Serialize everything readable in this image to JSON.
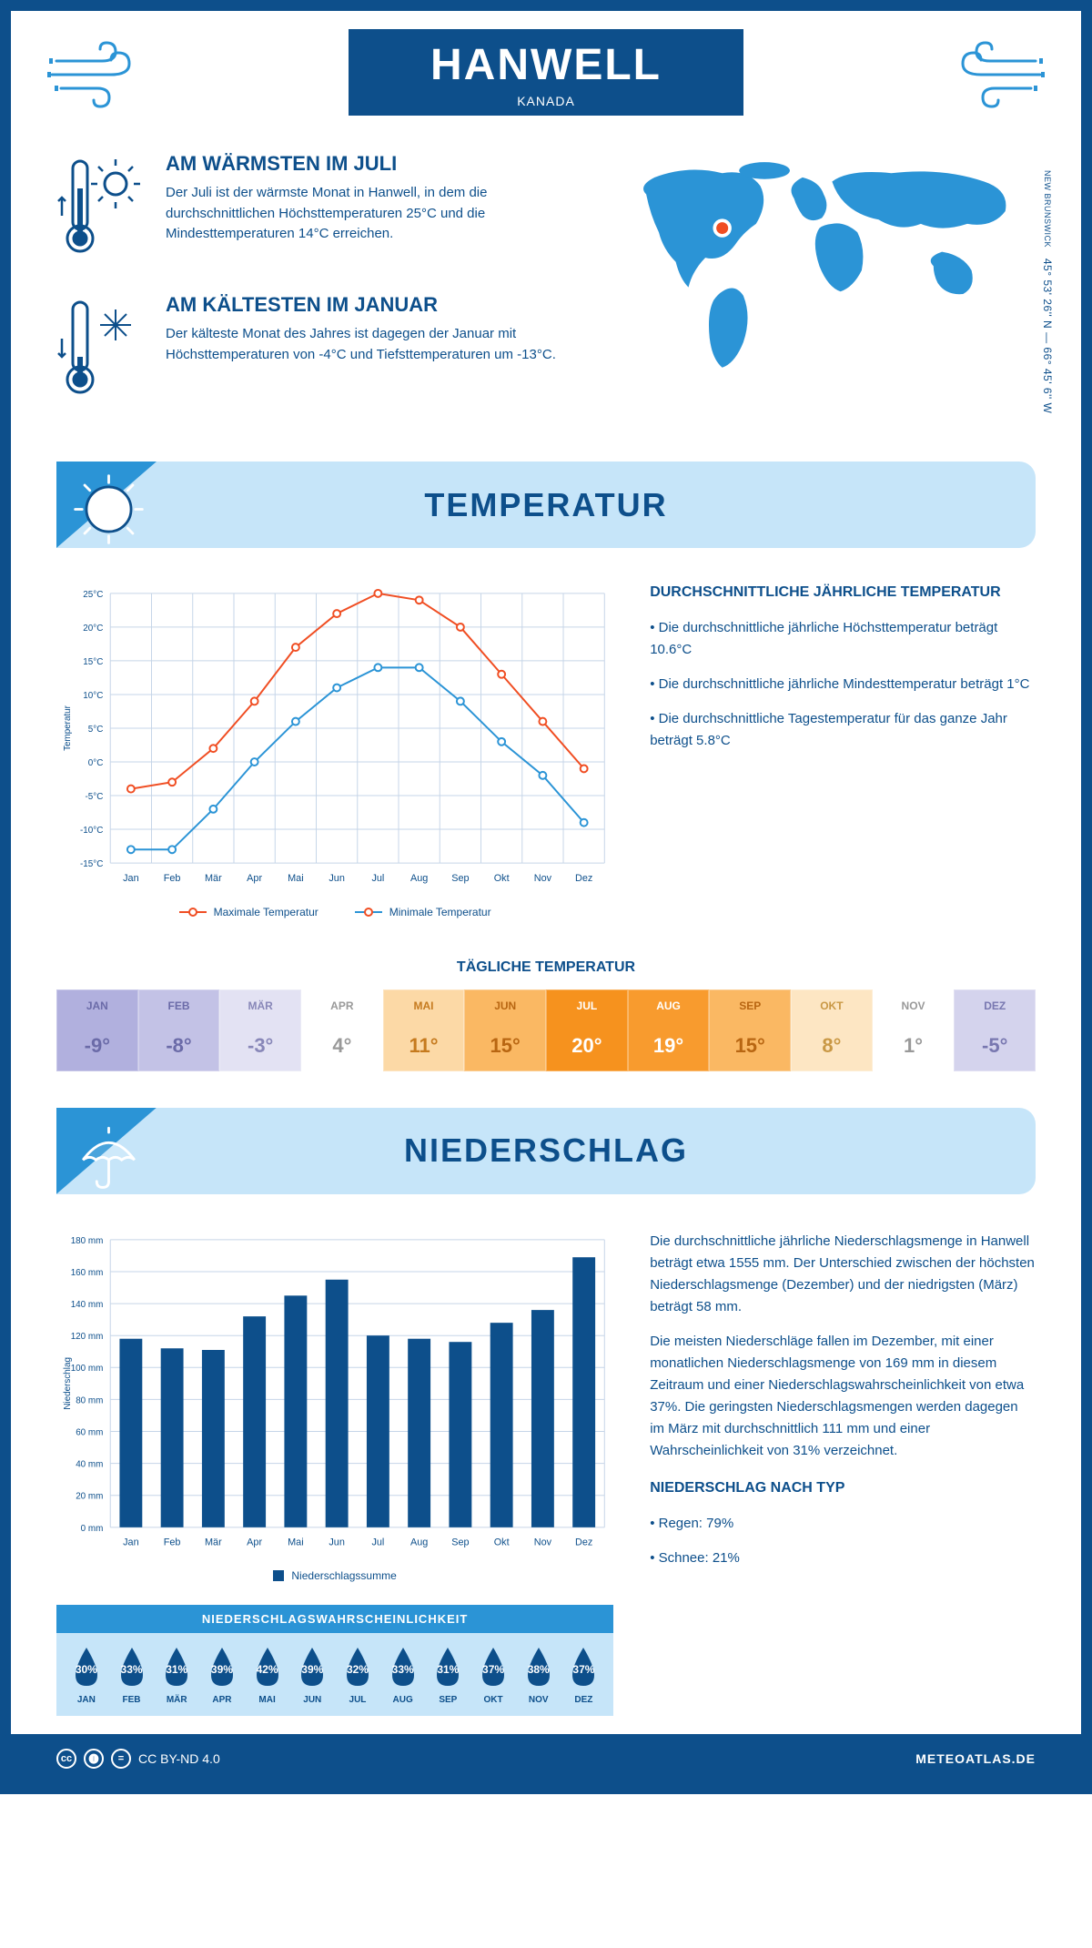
{
  "header": {
    "title": "HANWELL",
    "country": "KANADA"
  },
  "coords": {
    "region": "NEW BRUNSWICK",
    "lat": "45° 53' 26'' N",
    "lon": "66° 45' 6'' W"
  },
  "intro": {
    "hot": {
      "title": "AM WÄRMSTEN IM JULI",
      "text": "Der Juli ist der wärmste Monat in Hanwell, in dem die durchschnittlichen Höchsttemperaturen 25°C und die Mindesttemperaturen 14°C erreichen."
    },
    "cold": {
      "title": "AM KÄLTESTEN IM JANUAR",
      "text": "Der kälteste Monat des Jahres ist dagegen der Januar mit Höchsttemperaturen von -4°C und Tiefsttemperaturen um -13°C."
    }
  },
  "sections": {
    "temp": "TEMPERATUR",
    "precip": "NIEDERSCHLAG"
  },
  "months": [
    "Jan",
    "Feb",
    "Mär",
    "Apr",
    "Mai",
    "Jun",
    "Jul",
    "Aug",
    "Sep",
    "Okt",
    "Nov",
    "Dez"
  ],
  "months_upper": [
    "JAN",
    "FEB",
    "MÄR",
    "APR",
    "MAI",
    "JUN",
    "JUL",
    "AUG",
    "SEP",
    "OKT",
    "NOV",
    "DEZ"
  ],
  "temp_chart": {
    "ylabel": "Temperatur",
    "ymin": -15,
    "ymax": 25,
    "ystep": 5,
    "yticks": [
      "-15°C",
      "-10°C",
      "-5°C",
      "0°C",
      "5°C",
      "10°C",
      "15°C",
      "20°C",
      "25°C"
    ],
    "max_series": [
      -4,
      -3,
      2,
      9,
      17,
      22,
      25,
      24,
      20,
      13,
      6,
      -1
    ],
    "min_series": [
      -13,
      -13,
      -7,
      0,
      6,
      11,
      14,
      14,
      9,
      3,
      -2,
      -9
    ],
    "max_color": "#f04e23",
    "min_color": "#2b94d6",
    "grid_color": "#c6d5e8",
    "legend_max": "Maximale Temperatur",
    "legend_min": "Minimale Temperatur"
  },
  "temp_side": {
    "title": "DURCHSCHNITTLICHE JÄHRLICHE TEMPERATUR",
    "bullets": [
      "• Die durchschnittliche jährliche Höchsttemperatur beträgt 10.6°C",
      "• Die durchschnittliche jährliche Mindesttemperatur beträgt 1°C",
      "• Die durchschnittliche Tagestemperatur für das ganze Jahr beträgt 5.8°C"
    ]
  },
  "daily_temp": {
    "title": "TÄGLICHE TEMPERATUR",
    "values": [
      "-9°",
      "-8°",
      "-3°",
      "4°",
      "11°",
      "15°",
      "20°",
      "19°",
      "15°",
      "8°",
      "1°",
      "-5°"
    ],
    "colors": [
      "#b1b0de",
      "#c3c2e6",
      "#e3e2f3",
      "#ffffff",
      "#fcd9a6",
      "#fab863",
      "#f6921e",
      "#f89b2e",
      "#fab863",
      "#fde6c3",
      "#ffffff",
      "#d4d3ed"
    ],
    "text_colors": [
      "#6b6ba8",
      "#6b6ba8",
      "#8887b8",
      "#999",
      "#c57a1e",
      "#b86612",
      "#fff",
      "#fff",
      "#b86612",
      "#c99845",
      "#999",
      "#7877b0"
    ]
  },
  "precip_chart": {
    "ylabel": "Niederschlag",
    "ymin": 0,
    "ymax": 180,
    "ystep": 20,
    "yticks": [
      "0 mm",
      "20 mm",
      "40 mm",
      "60 mm",
      "80 mm",
      "100 mm",
      "120 mm",
      "140 mm",
      "160 mm",
      "180 mm"
    ],
    "values": [
      118,
      112,
      111,
      132,
      145,
      155,
      120,
      118,
      116,
      128,
      136,
      169
    ],
    "bar_color": "#0d4f8b",
    "grid_color": "#c6d5e8",
    "legend": "Niederschlagssumme"
  },
  "precip_text": {
    "p1": "Die durchschnittliche jährliche Niederschlagsmenge in Hanwell beträgt etwa 1555 mm. Der Unterschied zwischen der höchsten Niederschlagsmenge (Dezember) und der niedrigsten (März) beträgt 58 mm.",
    "p2": "Die meisten Niederschläge fallen im Dezember, mit einer monatlichen Niederschlagsmenge von 169 mm in diesem Zeitraum und einer Niederschlagswahrscheinlichkeit von etwa 37%. Die geringsten Niederschlagsmengen werden dagegen im März mit durchschnittlich 111 mm und einer Wahrscheinlichkeit von 31% verzeichnet.",
    "type_title": "NIEDERSCHLAG NACH TYP",
    "type_rain": "• Regen: 79%",
    "type_snow": "• Schnee: 21%"
  },
  "prob": {
    "title": "NIEDERSCHLAGSWAHRSCHEINLICHKEIT",
    "values": [
      "30%",
      "33%",
      "31%",
      "39%",
      "42%",
      "39%",
      "32%",
      "33%",
      "31%",
      "37%",
      "38%",
      "37%"
    ]
  },
  "footer": {
    "license": "CC BY-ND 4.0",
    "site": "METEOATLAS.DE"
  },
  "colors": {
    "primary": "#0d4f8b",
    "light": "#c6e5f9",
    "mid": "#2b94d6"
  }
}
